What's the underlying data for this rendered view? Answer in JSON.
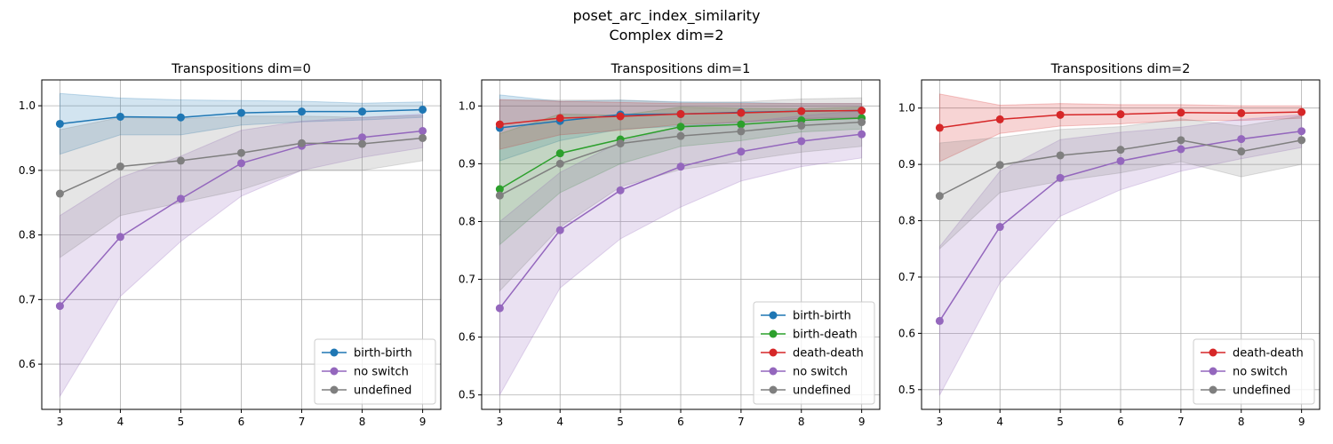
{
  "figure": {
    "suptitle_line1": "poset_arc_index_similarity",
    "suptitle_line2": "Complex dim=2"
  },
  "colors": {
    "birth-birth": "#1f77b4",
    "birth-death": "#2ca02c",
    "death-death": "#d62728",
    "no switch": "#9467bd",
    "undefined": "#7f7f7f"
  },
  "chart_data": [
    {
      "type": "line",
      "title": "Transpositions dim=0",
      "xlabel": "",
      "ylabel": "",
      "x": [
        3,
        4,
        5,
        6,
        7,
        8,
        9
      ],
      "xlim": [
        2.7,
        9.3
      ],
      "ylim": [
        0.53,
        1.04
      ],
      "yticks": [
        0.6,
        0.7,
        0.8,
        0.9,
        1.0
      ],
      "grid": true,
      "legend": "lower right",
      "series": [
        {
          "name": "birth-birth",
          "values": [
            0.972,
            0.983,
            0.982,
            0.989,
            0.991,
            0.991,
            0.994
          ],
          "lower": [
            0.925,
            0.955,
            0.955,
            0.97,
            0.975,
            0.978,
            0.982
          ],
          "upper": [
            1.019,
            1.012,
            1.009,
            1.008,
            1.007,
            1.004,
            1.006
          ]
        },
        {
          "name": "no switch",
          "values": [
            0.69,
            0.797,
            0.856,
            0.911,
            0.938,
            0.951,
            0.961
          ],
          "lower": [
            0.55,
            0.705,
            0.79,
            0.86,
            0.9,
            0.92,
            0.935
          ],
          "upper": [
            0.83,
            0.889,
            0.922,
            0.962,
            0.976,
            0.982,
            0.987
          ]
        },
        {
          "name": "undefined",
          "values": [
            0.864,
            0.906,
            0.915,
            0.927,
            0.942,
            0.941,
            0.95
          ],
          "lower": [
            0.765,
            0.83,
            0.85,
            0.87,
            0.9,
            0.9,
            0.915
          ],
          "upper": [
            0.963,
            0.982,
            0.98,
            0.984,
            0.984,
            0.982,
            0.985
          ]
        }
      ]
    },
    {
      "type": "line",
      "title": "Transpositions dim=1",
      "xlabel": "",
      "ylabel": "",
      "x": [
        3,
        4,
        5,
        6,
        7,
        8,
        9
      ],
      "xlim": [
        2.7,
        9.3
      ],
      "ylim": [
        0.475,
        1.045
      ],
      "yticks": [
        0.5,
        0.6,
        0.7,
        0.8,
        0.9,
        1.0
      ],
      "grid": true,
      "legend": "lower right",
      "series": [
        {
          "name": "birth-birth",
          "values": [
            0.962,
            0.974,
            0.985,
            0.986,
            0.989,
            0.991,
            0.992
          ],
          "lower": [
            0.905,
            0.94,
            0.96,
            0.965,
            0.972,
            0.978,
            0.98
          ],
          "upper": [
            1.019,
            1.008,
            1.01,
            1.007,
            1.006,
            1.004,
            1.004
          ]
        },
        {
          "name": "birth-death",
          "values": [
            0.856,
            0.918,
            0.942,
            0.964,
            0.968,
            0.975,
            0.979
          ],
          "lower": [
            0.76,
            0.85,
            0.9,
            0.93,
            0.94,
            0.955,
            0.96
          ],
          "upper": [
            0.952,
            0.986,
            0.984,
            0.998,
            0.996,
            0.995,
            0.998
          ]
        },
        {
          "name": "death-death",
          "values": [
            0.968,
            0.979,
            0.982,
            0.986,
            0.988,
            0.991,
            0.992
          ],
          "lower": [
            0.925,
            0.95,
            0.958,
            0.968,
            0.972,
            0.978,
            0.98
          ],
          "upper": [
            1.011,
            1.008,
            1.006,
            1.004,
            1.004,
            1.004,
            1.004
          ]
        },
        {
          "name": "no switch",
          "values": [
            0.65,
            0.785,
            0.854,
            0.895,
            0.921,
            0.939,
            0.951
          ],
          "lower": [
            0.5,
            0.685,
            0.77,
            0.825,
            0.87,
            0.895,
            0.91
          ],
          "upper": [
            0.8,
            0.885,
            0.938,
            0.965,
            0.972,
            0.983,
            0.992
          ]
        },
        {
          "name": "undefined",
          "values": [
            0.845,
            0.9,
            0.935,
            0.948,
            0.956,
            0.966,
            0.972
          ],
          "lower": [
            0.68,
            0.79,
            0.86,
            0.89,
            0.905,
            0.92,
            0.93
          ],
          "upper": [
            1.01,
            1.01,
            1.01,
            1.006,
            1.007,
            1.012,
            1.014
          ]
        }
      ]
    },
    {
      "type": "line",
      "title": "Transpositions dim=2",
      "xlabel": "",
      "ylabel": "",
      "x": [
        3,
        4,
        5,
        6,
        7,
        8,
        9
      ],
      "xlim": [
        2.7,
        9.3
      ],
      "ylim": [
        0.465,
        1.05
      ],
      "yticks": [
        0.5,
        0.6,
        0.7,
        0.8,
        0.9,
        1.0
      ],
      "grid": true,
      "legend": "lower right",
      "series": [
        {
          "name": "death-death",
          "values": [
            0.965,
            0.98,
            0.988,
            0.989,
            0.992,
            0.991,
            0.993
          ],
          "lower": [
            0.905,
            0.955,
            0.968,
            0.972,
            0.978,
            0.978,
            0.982
          ],
          "upper": [
            1.025,
            1.005,
            1.008,
            1.006,
            1.006,
            1.004,
            1.004
          ]
        },
        {
          "name": "no switch",
          "values": [
            0.622,
            0.789,
            0.876,
            0.906,
            0.927,
            0.945,
            0.959
          ],
          "lower": [
            0.49,
            0.69,
            0.808,
            0.855,
            0.888,
            0.91,
            0.93
          ],
          "upper": [
            0.754,
            0.888,
            0.944,
            0.957,
            0.966,
            0.98,
            0.988
          ]
        },
        {
          "name": "undefined",
          "values": [
            0.844,
            0.899,
            0.916,
            0.926,
            0.943,
            0.923,
            0.943
          ],
          "lower": [
            0.75,
            0.85,
            0.87,
            0.885,
            0.905,
            0.878,
            0.9
          ],
          "upper": [
            0.938,
            0.948,
            0.962,
            0.967,
            0.981,
            0.968,
            0.986
          ]
        }
      ]
    }
  ]
}
